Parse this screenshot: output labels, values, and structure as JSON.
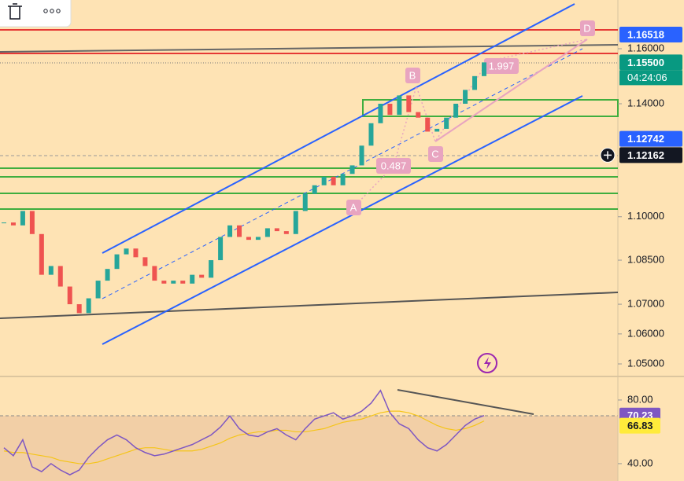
{
  "chart_data": {
    "type": "candlestick",
    "log_scale": true,
    "up_color": "#26a69a",
    "down_color": "#ef5350",
    "values": [
      1.098,
      1.097,
      1.102,
      1.094,
      1.08,
      1.083,
      1.076,
      1.07,
      1.067,
      1.072,
      1.078,
      1.082,
      1.087,
      1.089,
      1.086,
      1.083,
      1.078,
      1.077,
      1.078,
      1.077,
      1.08,
      1.079,
      1.085,
      1.093,
      1.097,
      1.093,
      1.092,
      1.093,
      1.096,
      1.095,
      1.094,
      1.102,
      1.108,
      1.111,
      1.114,
      1.111,
      1.115,
      1.118,
      1.125,
      1.133,
      1.14,
      1.136,
      1.143,
      1.137,
      1.135,
      1.13,
      1.131,
      1.135,
      1.14,
      1.145,
      1.15,
      1.155
    ],
    "ylim": [
      1.0461,
      1.178
    ],
    "yticks": [
      {
        "value": 1.16,
        "label": "1.16000"
      },
      {
        "value": 1.14,
        "label": "1.14000"
      },
      {
        "value": 1.1,
        "label": "1.10000"
      },
      {
        "value": 1.085,
        "label": "1.08500"
      },
      {
        "value": 1.07,
        "label": "1.07000"
      },
      {
        "value": 1.06,
        "label": "1.06000"
      },
      {
        "value": 1.05,
        "label": "1.05000"
      }
    ],
    "price_tags": [
      {
        "value": 1.16518,
        "label": "1.16518",
        "color": "#2962ff"
      },
      {
        "value": 1.155,
        "label": "1.15500",
        "color": "#089981"
      },
      {
        "value": 1.12742,
        "label": "1.12742",
        "color": "#2962ff"
      },
      {
        "value": 1.12162,
        "label": "1.12162",
        "color": "#131722"
      }
    ],
    "countdown": "04:24:06",
    "annotations": [
      "D",
      "B",
      "C",
      "A",
      "1.997",
      "0.487"
    ],
    "rsi": {
      "color": "#7e57c2",
      "ma_color": "#f5c518",
      "values": [
        50,
        45,
        55,
        38,
        35,
        40,
        36,
        33,
        36,
        44,
        50,
        55,
        58,
        55,
        50,
        47,
        45,
        46,
        48,
        50,
        52,
        55,
        58,
        63,
        70,
        62,
        58,
        57,
        60,
        62,
        58,
        55,
        62,
        68,
        70,
        72,
        68,
        70,
        73,
        78,
        86,
        72,
        65,
        62,
        55,
        50,
        48,
        52,
        58,
        64,
        68,
        70.23
      ],
      "ma_values": [
        48,
        47,
        47,
        46,
        45,
        44,
        42,
        41,
        40,
        40,
        41,
        43,
        45,
        47,
        49,
        50,
        50,
        49,
        48,
        48,
        48,
        49,
        51,
        53,
        56,
        58,
        59,
        60,
        60,
        61,
        61,
        60,
        60,
        61,
        62,
        64,
        66,
        67,
        68,
        70,
        72,
        73,
        73,
        72,
        70,
        67,
        64,
        62,
        61,
        62,
        64,
        66.83
      ],
      "ylim": [
        29.1,
        94.3
      ],
      "yticks": [
        {
          "value": 80,
          "label": "80.00"
        },
        {
          "value": 40,
          "label": "40.00"
        }
      ],
      "tags": [
        {
          "value": 70.23,
          "label": "70.23",
          "color": "#7e57c2",
          "text_color": "#ffffff"
        },
        {
          "value": 66.83,
          "label": "66.83",
          "color": "#ffeb3b",
          "text_color": "#131722"
        }
      ]
    }
  }
}
